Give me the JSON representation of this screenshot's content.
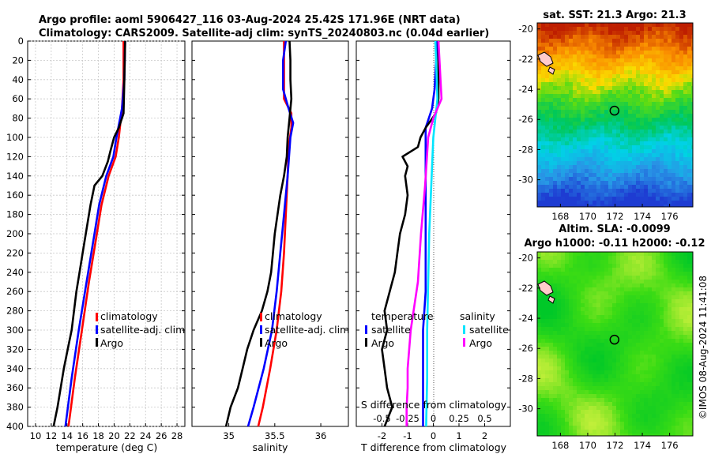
{
  "title_line1": "Argo profile: aoml 5906427_116 03-Aug-2024 25.42S 171.96E (NRT data)",
  "title_line2": "Climatology: CARS2009. Satellite-adj clim: synTS_20240803.nc (0.04d earlier)",
  "watermark": "©IMOS 08-Aug-2024 11:41:08",
  "colors": {
    "climatology": "#ff0000",
    "satellite": "#0000ff",
    "argo": "#000000",
    "s_satellite": "#00e5ff",
    "s_argo": "#ff00ff"
  },
  "depth_ticks": [
    "0",
    "20",
    "40",
    "60",
    "80",
    "100",
    "120",
    "140",
    "160",
    "180",
    "200",
    "220",
    "240",
    "260",
    "280",
    "300",
    "320",
    "340",
    "360",
    "380",
    "400"
  ],
  "chart_data": [
    {
      "type": "line",
      "name": "temperature",
      "xlabel": "temperature (deg C)",
      "ylabel": "depth",
      "xlim": [
        9,
        29
      ],
      "ylim": [
        400,
        0
      ],
      "xticks": [
        10,
        12,
        14,
        16,
        18,
        20,
        22,
        24,
        26,
        28
      ],
      "xtick_labels": [
        "10",
        "12",
        "14",
        "16",
        "18",
        "20",
        "22",
        "24",
        "26",
        "28"
      ],
      "legend": [
        "climatology",
        "satellite-adj. clim",
        "Argo"
      ],
      "series": [
        {
          "name": "climatology",
          "depth": [
            0,
            40,
            70,
            100,
            120,
            140,
            170,
            200,
            250,
            300,
            350,
            400
          ],
          "values": [
            21.2,
            21.2,
            21.0,
            20.6,
            20.2,
            19.3,
            18.4,
            17.8,
            16.8,
            15.9,
            15.0,
            14.2
          ]
        },
        {
          "name": "satellite-adj. clim",
          "depth": [
            0,
            40,
            70,
            100,
            120,
            140,
            170,
            200,
            250,
            300,
            350,
            400
          ],
          "values": [
            21.4,
            21.3,
            21.0,
            20.3,
            19.9,
            19.0,
            18.1,
            17.5,
            16.5,
            15.5,
            14.6,
            13.8
          ]
        },
        {
          "name": "Argo",
          "depth": [
            0,
            40,
            75,
            90,
            100,
            115,
            125,
            140,
            150,
            170,
            190,
            200,
            220,
            240,
            260,
            280,
            300,
            320,
            340,
            360,
            380,
            400
          ],
          "values": [
            21.4,
            21.3,
            21.2,
            20.6,
            20.0,
            19.5,
            19.2,
            18.5,
            17.5,
            17.0,
            16.6,
            16.4,
            16.0,
            15.6,
            15.2,
            14.9,
            14.6,
            14.1,
            13.6,
            13.2,
            12.8,
            12.3
          ]
        }
      ]
    },
    {
      "type": "line",
      "name": "salinity",
      "xlabel": "salinity",
      "ylabel": "depth",
      "xlim": [
        34.6,
        36.3
      ],
      "ylim": [
        400,
        0
      ],
      "xticks": [
        35,
        35.5,
        36
      ],
      "xtick_labels": [
        "35",
        "35.5",
        "36"
      ],
      "legend": [
        "climatology",
        "satellite-adj. clim",
        "Argo"
      ],
      "series": [
        {
          "name": "climatology",
          "depth": [
            0,
            20,
            60,
            75,
            90,
            110,
            140,
            180,
            220,
            260,
            300,
            340,
            380,
            400
          ],
          "values": [
            35.6,
            35.6,
            35.6,
            35.68,
            35.68,
            35.65,
            35.64,
            35.62,
            35.6,
            35.57,
            35.52,
            35.45,
            35.37,
            35.32
          ]
        },
        {
          "name": "satellite-adj. clim",
          "depth": [
            0,
            20,
            50,
            70,
            85,
            100,
            140,
            180,
            220,
            260,
            300,
            340,
            380,
            400
          ],
          "values": [
            35.62,
            35.59,
            35.59,
            35.65,
            35.7,
            35.67,
            35.64,
            35.6,
            35.56,
            35.52,
            35.47,
            35.38,
            35.27,
            35.21
          ]
        },
        {
          "name": "Argo",
          "depth": [
            0,
            20,
            40,
            60,
            80,
            100,
            120,
            140,
            160,
            180,
            200,
            220,
            240,
            260,
            280,
            300,
            320,
            340,
            360,
            380,
            400
          ],
          "values": [
            35.66,
            35.67,
            35.67,
            35.68,
            35.66,
            35.64,
            35.63,
            35.6,
            35.56,
            35.53,
            35.5,
            35.48,
            35.46,
            35.42,
            35.36,
            35.27,
            35.2,
            35.15,
            35.1,
            35.02,
            34.97
          ]
        }
      ]
    },
    {
      "type": "line",
      "name": "differences",
      "xlabel": "T difference from climatology",
      "ylabel": "depth",
      "xlim": [
        -3.0,
        3.0
      ],
      "ylim": [
        400,
        0
      ],
      "xticks": [
        -2,
        -1,
        0,
        1,
        2
      ],
      "xtick_labels": [
        "-2",
        "-1",
        "0",
        "1",
        "2"
      ],
      "secondary_xlabel": "S difference from climatology",
      "secondary_xlim": [
        -0.75,
        0.75
      ],
      "secondary_xticks": [
        -0.5,
        -0.25,
        0,
        0.25,
        0.5
      ],
      "secondary_xtick_labels": [
        "-0.5",
        "-0.25",
        "0",
        "0.25",
        "0.5"
      ],
      "legend_temperature_title": "temperature",
      "legend_temperature": [
        "satellite",
        "Argo"
      ],
      "legend_salinity_title": "salinity",
      "legend_salinity": [
        "satellite",
        "Argo"
      ],
      "series": [
        {
          "name": "temperature satellite",
          "depth": [
            0,
            50,
            70,
            90,
            120,
            160,
            200,
            260,
            300,
            340,
            400
          ],
          "values": [
            0.15,
            0.05,
            -0.05,
            -0.3,
            -0.3,
            -0.3,
            -0.3,
            -0.3,
            -0.4,
            -0.4,
            -0.4
          ]
        },
        {
          "name": "temperature Argo",
          "depth": [
            0,
            60,
            75,
            90,
            100,
            110,
            120,
            130,
            140,
            160,
            180,
            200,
            220,
            240,
            260,
            280,
            300,
            320,
            340,
            360,
            380,
            400
          ],
          "values": [
            0.2,
            0.2,
            0.1,
            -0.3,
            -0.5,
            -0.6,
            -1.2,
            -1.0,
            -1.1,
            -1.0,
            -1.1,
            -1.3,
            -1.4,
            -1.5,
            -1.7,
            -1.9,
            -1.8,
            -2.0,
            -1.9,
            -1.8,
            -1.6,
            -1.9
          ]
        },
        {
          "name": "salinity satellite",
          "depth": [
            0,
            60,
            100,
            150,
            200,
            250,
            300,
            350,
            400
          ],
          "values": [
            0.02,
            0.04,
            0.0,
            -0.02,
            -0.04,
            -0.05,
            -0.06,
            -0.06,
            -0.07
          ]
        },
        {
          "name": "salinity Argo",
          "depth": [
            0,
            60,
            80,
            100,
            150,
            200,
            250,
            300,
            340,
            360,
            380,
            400
          ],
          "values": [
            0.05,
            0.08,
            0.0,
            -0.05,
            -0.08,
            -0.12,
            -0.15,
            -0.22,
            -0.25,
            -0.25,
            -0.26,
            -0.26
          ]
        }
      ]
    },
    {
      "type": "heatmap",
      "name": "sat_sst",
      "title": "sat. SST: 21.3 Argo: 21.3",
      "xlim": [
        166.3,
        177.7
      ],
      "ylim": [
        -31.8,
        -19.6
      ],
      "xticks": [
        168,
        170,
        172,
        174,
        176
      ],
      "xtick_labels": [
        "168",
        "170",
        "172",
        "174",
        "176"
      ],
      "yticks": [
        -20,
        -22,
        -24,
        -26,
        -28,
        -30
      ],
      "ytick_labels": [
        "-20",
        "-22",
        "-24",
        "-26",
        "-28",
        "-30"
      ],
      "marker": {
        "lon": 171.96,
        "lat": -25.42
      }
    },
    {
      "type": "heatmap",
      "name": "altim_sla",
      "title_line1": "Altim. SLA: -0.0099",
      "title_line2": "Argo h1000: -0.11 h2000: -0.12",
      "xlim": [
        166.3,
        177.7
      ],
      "ylim": [
        -31.8,
        -19.6
      ],
      "xticks": [
        168,
        170,
        172,
        174,
        176
      ],
      "xtick_labels": [
        "168",
        "170",
        "172",
        "174",
        "176"
      ],
      "yticks": [
        -20,
        -22,
        -24,
        -26,
        -28,
        -30
      ],
      "ytick_labels": [
        "-20",
        "-22",
        "-24",
        "-26",
        "-28",
        "-30"
      ],
      "marker": {
        "lon": 171.96,
        "lat": -25.42
      }
    }
  ]
}
